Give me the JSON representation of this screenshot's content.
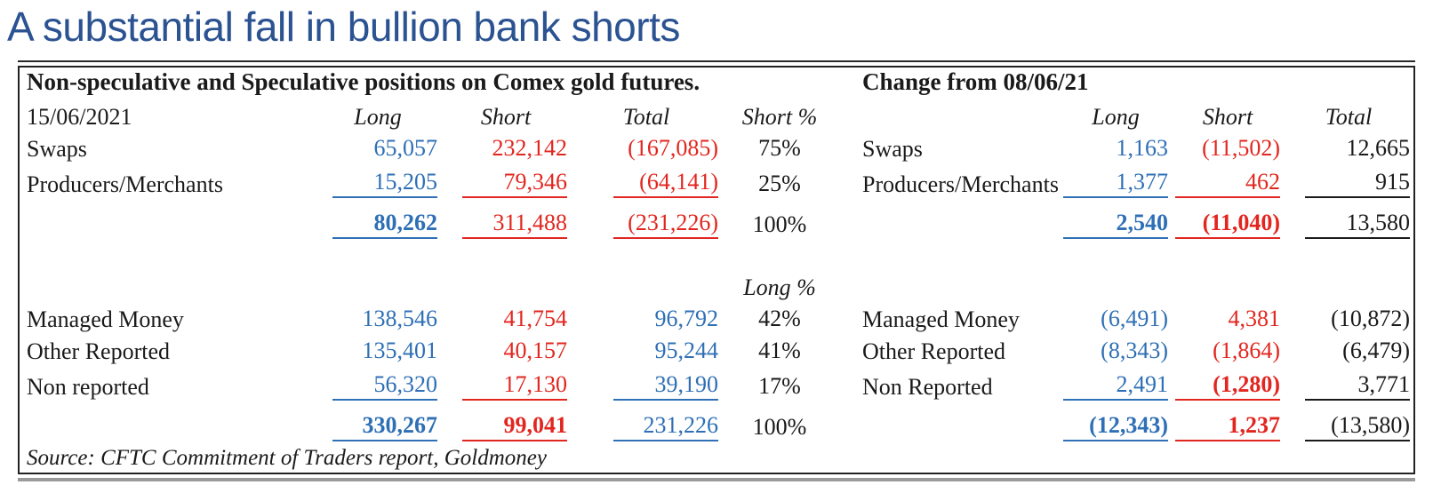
{
  "page": {
    "title": "A substantial fall in bullion bank shorts"
  },
  "colors": {
    "title_blue": "#2b5291",
    "long_blue": "#2e6fb5",
    "short_red": "#e2261f",
    "text_black": "#1a1a1a"
  },
  "left_table": {
    "title": "Non-speculative and Speculative positions on Comex gold futures.",
    "date": "15/06/2021",
    "headers": {
      "long": "Long",
      "short": "Short",
      "total": "Total",
      "short_pct": "Short %",
      "long_pct": "Long %"
    },
    "rows": {
      "swaps": {
        "label": "Swaps",
        "long": "65,057",
        "short": "232,142",
        "total": "(167,085)",
        "pct": "75%"
      },
      "producers": {
        "label": "Producers/Merchants",
        "long": "15,205",
        "short": "79,346",
        "total": "(64,141)",
        "pct": "25%"
      },
      "subtotal_top": {
        "long": "80,262",
        "short": "311,488",
        "total": "(231,226)",
        "pct": "100%"
      },
      "managed_money": {
        "label": "Managed Money",
        "long": "138,546",
        "short": "41,754",
        "total": "96,792",
        "pct": "42%"
      },
      "other_reported": {
        "label": "Other Reported",
        "long": "135,401",
        "short": "40,157",
        "total": "95,244",
        "pct": "41%"
      },
      "non_reported": {
        "label": "Non reported",
        "long": "56,320",
        "short": "17,130",
        "total": "39,190",
        "pct": "17%"
      },
      "subtotal_bottom": {
        "long": "330,267",
        "short": "99,041",
        "total": "231,226",
        "pct": "100%"
      }
    },
    "source": "Source: CFTC Commitment of Traders report, Goldmoney"
  },
  "right_table": {
    "title": "Change from 08/06/21",
    "headers": {
      "long": "Long",
      "short": "Short",
      "total": "Total"
    },
    "rows": {
      "swaps": {
        "label": "Swaps",
        "long": "1,163",
        "short": "(11,502)",
        "total": "12,665"
      },
      "producers": {
        "label": "Producers/Merchants",
        "long": "1,377",
        "short": "462",
        "total": "915"
      },
      "subtotal_top": {
        "long": "2,540",
        "short": "(11,040)",
        "total": "13,580"
      },
      "managed_money": {
        "label": "Managed Money",
        "long": "(6,491)",
        "short": "4,381",
        "total": "(10,872)"
      },
      "other_reported": {
        "label": "Other Reported",
        "long": "(8,343)",
        "short": "(1,864)",
        "total": "(6,479)"
      },
      "non_reported": {
        "label": "Non Reported",
        "long": "2,491",
        "short": "(1,280)",
        "total": "3,771"
      },
      "subtotal_bottom": {
        "long": "(12,343)",
        "short": "1,237",
        "total": "(13,580)"
      }
    }
  }
}
